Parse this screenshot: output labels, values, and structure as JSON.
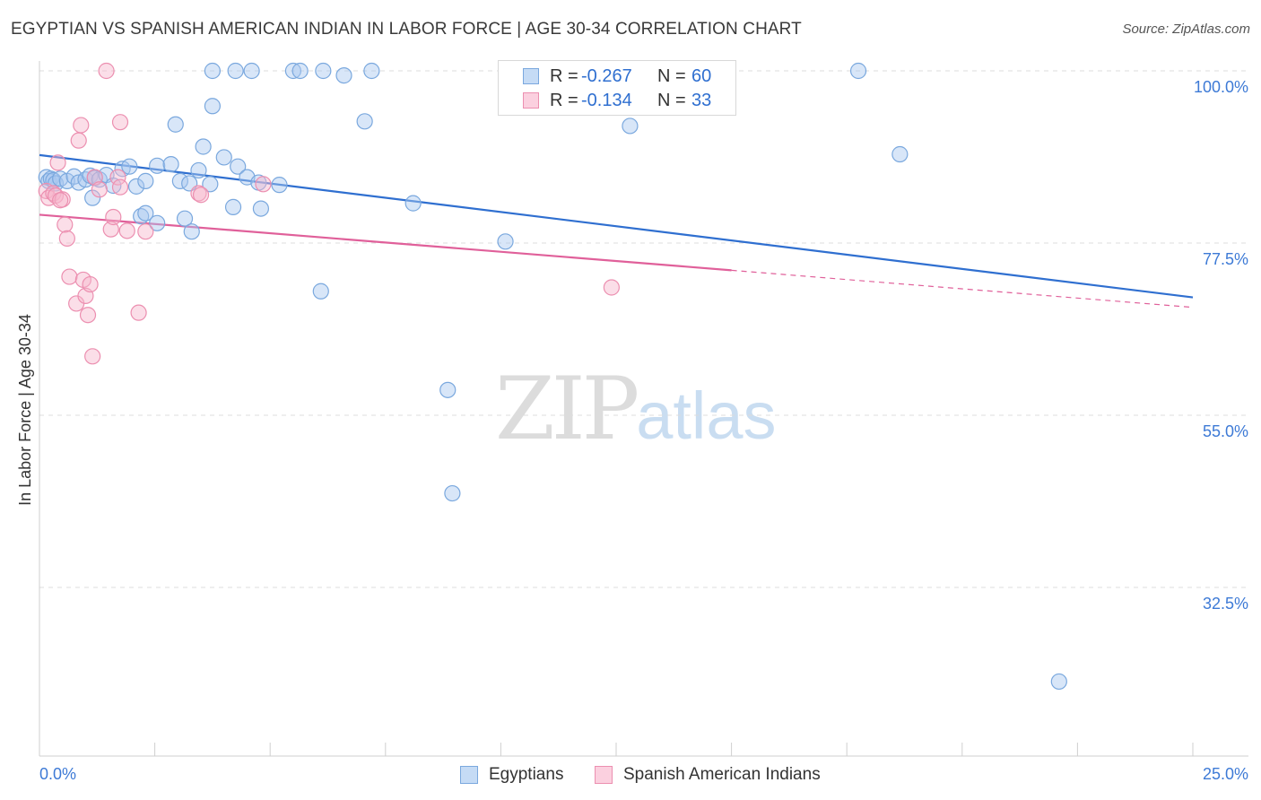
{
  "chart_data": {
    "type": "scatter",
    "title": "EGYPTIAN VS SPANISH AMERICAN INDIAN IN LABOR FORCE | AGE 30-34 CORRELATION CHART",
    "source": "Source: ZipAtlas.com",
    "xlabel": "",
    "ylabel": "In Labor Force | Age 30-34",
    "xlim": [
      0,
      25
    ],
    "ylim": [
      10,
      100
    ],
    "x_tick_labels": [
      "0.0%",
      "25.0%"
    ],
    "y_tick_labels": [
      "100.0%",
      "77.5%",
      "55.0%",
      "32.5%"
    ],
    "y_tick_values": [
      100.0,
      77.5,
      55.0,
      32.5
    ],
    "watermark": {
      "zip": "ZIP",
      "atlas": "atlas"
    },
    "legend_stats": [
      {
        "r_label": "R =",
        "r_value": "-0.267",
        "n_label": "N =",
        "n_value": "60"
      },
      {
        "r_label": "R =",
        "r_value": "-0.134",
        "n_label": "N =",
        "n_value": "33"
      }
    ],
    "series": [
      {
        "name": "Egyptians",
        "color": "#a8c8f0",
        "stroke": "#7aa8de",
        "line_color": "#2f6fd0",
        "trend": {
          "x0": 0,
          "y0": 89.0,
          "x1": 25,
          "y1": 70.4,
          "dashed_from": null
        },
        "points": [
          [
            0.15,
            86.1
          ],
          [
            0.2,
            85.6
          ],
          [
            0.25,
            85.9
          ],
          [
            0.3,
            85.7
          ],
          [
            0.35,
            85.3
          ],
          [
            0.45,
            85.9
          ],
          [
            0.6,
            85.6
          ],
          [
            0.75,
            86.2
          ],
          [
            0.85,
            85.4
          ],
          [
            1.0,
            85.8
          ],
          [
            1.1,
            86.3
          ],
          [
            1.2,
            86.0
          ],
          [
            1.3,
            85.8
          ],
          [
            1.45,
            86.4
          ],
          [
            1.6,
            85.0
          ],
          [
            1.8,
            87.2
          ],
          [
            1.95,
            87.5
          ],
          [
            2.1,
            84.9
          ],
          [
            2.3,
            85.6
          ],
          [
            2.55,
            87.6
          ],
          [
            2.85,
            87.8
          ],
          [
            3.05,
            85.6
          ],
          [
            3.25,
            85.3
          ],
          [
            3.45,
            87.0
          ],
          [
            3.7,
            85.2
          ],
          [
            4.0,
            88.7
          ],
          [
            4.3,
            87.5
          ],
          [
            4.5,
            86.1
          ],
          [
            4.75,
            85.4
          ],
          [
            1.15,
            83.4
          ],
          [
            2.2,
            81.0
          ],
          [
            2.3,
            81.4
          ],
          [
            2.55,
            80.1
          ],
          [
            3.15,
            80.7
          ],
          [
            3.3,
            79.0
          ],
          [
            3.55,
            90.1
          ],
          [
            4.2,
            82.2
          ],
          [
            4.8,
            82.0
          ],
          [
            5.2,
            85.1
          ],
          [
            7.05,
            93.4
          ],
          [
            8.1,
            82.7
          ],
          [
            10.1,
            77.7
          ],
          [
            3.75,
            95.4
          ],
          [
            2.95,
            93.0
          ],
          [
            6.1,
            71.2
          ],
          [
            3.75,
            100.0
          ],
          [
            4.25,
            100.0
          ],
          [
            4.6,
            100.0
          ],
          [
            5.5,
            100.0
          ],
          [
            5.65,
            100.0
          ],
          [
            6.15,
            100.0
          ],
          [
            6.6,
            99.4
          ],
          [
            7.2,
            100.0
          ],
          [
            10.4,
            100.0
          ],
          [
            12.8,
            92.8
          ],
          [
            17.75,
            100.0
          ],
          [
            18.65,
            89.1
          ],
          [
            8.85,
            58.3
          ],
          [
            8.95,
            44.8
          ],
          [
            22.1,
            20.2
          ]
        ]
      },
      {
        "name": "Spanish American Indians",
        "color": "#f7b6cc",
        "stroke": "#ec8fb0",
        "line_color": "#e0609a",
        "trend": {
          "x0": 0,
          "y0": 81.2,
          "x1": 25,
          "y1": 69.1,
          "dashed_from": 15.0
        },
        "points": [
          [
            0.15,
            84.3
          ],
          [
            0.2,
            83.4
          ],
          [
            0.3,
            84.0
          ],
          [
            0.35,
            83.7
          ],
          [
            0.4,
            88.0
          ],
          [
            0.5,
            83.2
          ],
          [
            0.55,
            79.9
          ],
          [
            0.6,
            78.1
          ],
          [
            0.65,
            73.1
          ],
          [
            0.8,
            69.6
          ],
          [
            0.85,
            90.9
          ],
          [
            0.9,
            92.9
          ],
          [
            0.95,
            72.7
          ],
          [
            1.0,
            70.6
          ],
          [
            1.05,
            68.1
          ],
          [
            1.1,
            72.1
          ],
          [
            1.15,
            62.7
          ],
          [
            1.2,
            86.1
          ],
          [
            1.3,
            84.5
          ],
          [
            1.55,
            79.3
          ],
          [
            1.6,
            80.9
          ],
          [
            1.7,
            86.1
          ],
          [
            1.75,
            84.8
          ],
          [
            1.75,
            93.3
          ],
          [
            1.9,
            79.1
          ],
          [
            2.15,
            68.4
          ],
          [
            2.3,
            79.0
          ],
          [
            3.45,
            84.0
          ],
          [
            3.5,
            83.8
          ],
          [
            4.85,
            85.2
          ],
          [
            12.4,
            71.7
          ],
          [
            1.45,
            100.0
          ],
          [
            0.45,
            83.1
          ]
        ]
      }
    ]
  }
}
